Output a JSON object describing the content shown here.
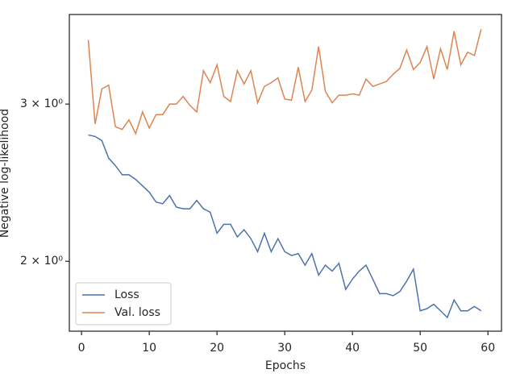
{
  "chart_data": {
    "type": "line",
    "xlabel": "Epochs",
    "ylabel": "Negative log-likelihood",
    "x": [
      1,
      2,
      3,
      4,
      5,
      6,
      7,
      8,
      9,
      10,
      11,
      12,
      13,
      14,
      15,
      16,
      17,
      18,
      19,
      20,
      21,
      22,
      23,
      24,
      25,
      26,
      27,
      28,
      29,
      30,
      31,
      32,
      33,
      34,
      35,
      36,
      37,
      38,
      39,
      40,
      41,
      42,
      43,
      44,
      45,
      46,
      47,
      48,
      49,
      50,
      51,
      52,
      53,
      54,
      55,
      56,
      57,
      58,
      59
    ],
    "series": [
      {
        "name": "Loss",
        "color": "#4c72b0",
        "values": [
          2.77,
          2.76,
          2.73,
          2.61,
          2.56,
          2.5,
          2.5,
          2.47,
          2.43,
          2.39,
          2.33,
          2.32,
          2.37,
          2.3,
          2.29,
          2.29,
          2.34,
          2.29,
          2.27,
          2.15,
          2.2,
          2.2,
          2.13,
          2.17,
          2.12,
          2.05,
          2.15,
          2.05,
          2.12,
          2.05,
          2.03,
          2.04,
          1.98,
          2.04,
          1.93,
          1.98,
          1.95,
          1.99,
          1.86,
          1.91,
          1.95,
          1.98,
          1.91,
          1.84,
          1.84,
          1.83,
          1.85,
          1.9,
          1.96,
          1.76,
          1.77,
          1.79,
          1.76,
          1.73,
          1.81,
          1.76,
          1.76,
          1.78,
          1.76
        ]
      },
      {
        "name": "Val. loss",
        "color": "#dd8452",
        "values": [
          3.54,
          2.85,
          3.12,
          3.15,
          2.83,
          2.81,
          2.88,
          2.78,
          2.94,
          2.82,
          2.92,
          2.92,
          3.0,
          3.0,
          3.06,
          2.99,
          2.94,
          3.27,
          3.17,
          3.32,
          3.06,
          3.02,
          3.27,
          3.16,
          3.27,
          3.01,
          3.14,
          3.17,
          3.21,
          3.04,
          3.03,
          3.3,
          3.02,
          3.11,
          3.48,
          3.1,
          3.01,
          3.07,
          3.07,
          3.08,
          3.07,
          3.2,
          3.14,
          3.16,
          3.18,
          3.24,
          3.29,
          3.45,
          3.28,
          3.34,
          3.48,
          3.2,
          3.46,
          3.28,
          3.62,
          3.32,
          3.43,
          3.4,
          3.64
        ]
      }
    ],
    "xlim": [
      -1.8,
      62.0
    ],
    "xticks": [
      0,
      10,
      20,
      30,
      40,
      50,
      60
    ],
    "ylim": [
      1.67,
      3.78
    ],
    "ylog": true,
    "yticks": [
      {
        "value": 2,
        "label": "2 × 10⁰"
      },
      {
        "value": 3,
        "label": "3 × 10⁰"
      }
    ],
    "legend": "lower left"
  }
}
